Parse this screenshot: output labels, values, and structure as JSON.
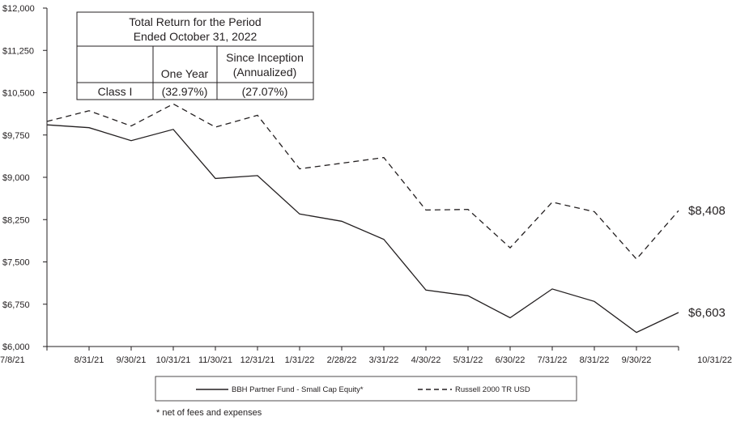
{
  "chart_data": {
    "type": "line",
    "x": [
      "7/8/21",
      "8/31/21",
      "9/30/21",
      "10/31/21",
      "11/30/21",
      "12/31/21",
      "1/31/22",
      "2/28/22",
      "3/31/22",
      "4/30/22",
      "5/31/22",
      "6/30/22",
      "7/31/22",
      "8/31/22",
      "9/30/22",
      "10/31/22"
    ],
    "y_ticks": [
      "$6,000",
      "$6,750",
      "$7,500",
      "$8,250",
      "$9,000",
      "$9,750",
      "$10,500",
      "$11,250",
      "$12,000"
    ],
    "ylim": [
      6000,
      12000
    ],
    "grid": false,
    "series": [
      {
        "name": "BBH Partner Fund - Small Cap Equity*",
        "style": "solid",
        "values": [
          9930,
          9880,
          9650,
          9850,
          8980,
          9030,
          8350,
          8220,
          7900,
          7000,
          6900,
          6510,
          7020,
          6800,
          6250,
          6603
        ],
        "end_label": "$6,603"
      },
      {
        "name": "Russell 2000 TR USD",
        "style": "dashed",
        "values": [
          9990,
          10180,
          9910,
          10300,
          9890,
          10100,
          9150,
          9250,
          9350,
          8420,
          8430,
          7750,
          8560,
          8390,
          7550,
          8408
        ],
        "end_label": "$8,408"
      }
    ],
    "legend_position": "bottom"
  },
  "performance_table": {
    "title_line1": "Total Return for the Period",
    "title_line2": "Ended October 31, 2022",
    "col1_header": "One Year",
    "col2_header_line1": "Since Inception",
    "col2_header_line2": "(Annualized)",
    "row_label": "Class I",
    "one_year": "(32.97%)",
    "since_inception": "(27.07%)"
  },
  "footnote": "* net of fees and expenses"
}
